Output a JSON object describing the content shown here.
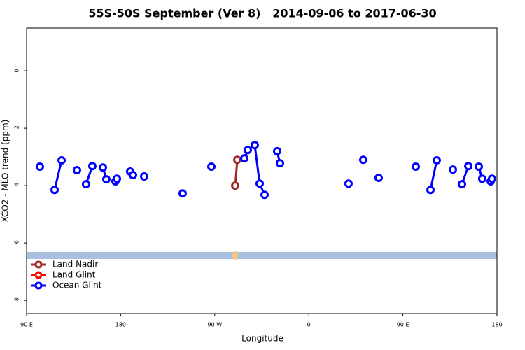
{
  "chart_data": {
    "type": "line",
    "title": "55S-50S September (Ver 8)   2014-09-06 to 2017-06-30",
    "xlabel": "Longitude",
    "ylabel": "XCO2 - MLO trend (ppm)",
    "xlim": [
      90,
      540
    ],
    "ylim": [
      -8.46,
      1.49
    ],
    "xticks": [
      {
        "value": 90,
        "label": "90 E"
      },
      180,
      {
        "value": 270,
        "label": "90 W"
      },
      {
        "value": 360,
        "label": "0"
      },
      {
        "value": 450,
        "label": "90 E"
      },
      {
        "value": 540,
        "label": "180"
      }
    ],
    "yticks": [
      0,
      -2,
      -4,
      -6,
      -8
    ],
    "legend": "bottomleft",
    "series": [
      {
        "name": "Land Nadir",
        "color": "#a52a2a",
        "x": [
          289.6,
          291.6
        ],
        "values": [
          -4.0,
          -3.1
        ]
      },
      {
        "name": "Land Glint",
        "color": "#ff0000",
        "x": [],
        "values": []
      },
      {
        "name": "Ocean Glint",
        "color": "#0000ff",
        "x": [
          102.7,
          null,
          116.8,
          123.5,
          null,
          138.2,
          null,
          146.9,
          152.9,
          null,
          163.0,
          166.3,
          null,
          175.0,
          176.4,
          null,
          189.1,
          191.8,
          null,
          202.5,
          null,
          239.3,
          null,
          266.8,
          null,
          298.3,
          301.6,
          308.3,
          313.0,
          317.7,
          null,
          329.7,
          332.4,
          null,
          398.0,
          null,
          412.1,
          null,
          426.8,
          null,
          462.3,
          null,
          476.4,
          482.4,
          null,
          497.8,
          null,
          506.5,
          512.6,
          null,
          522.6,
          525.9,
          null,
          534.0,
          535.3
        ],
        "values": [
          -3.34,
          null,
          -4.15,
          -3.12,
          null,
          -3.46,
          null,
          -3.95,
          -3.32,
          null,
          -3.37,
          -3.78,
          null,
          -3.85,
          -3.76,
          null,
          -3.51,
          -3.63,
          null,
          -3.68,
          null,
          -4.27,
          null,
          -3.34,
          null,
          -3.05,
          -2.76,
          -2.59,
          -3.93,
          -4.32,
          null,
          -2.8,
          -3.22,
          null,
          -3.93,
          null,
          -3.1,
          null,
          -3.73,
          null,
          -3.34,
          null,
          -4.15,
          -3.12,
          null,
          -3.44,
          null,
          -3.95,
          -3.32,
          null,
          -3.34,
          -3.76,
          null,
          -3.85,
          -3.76
        ]
      }
    ]
  }
}
